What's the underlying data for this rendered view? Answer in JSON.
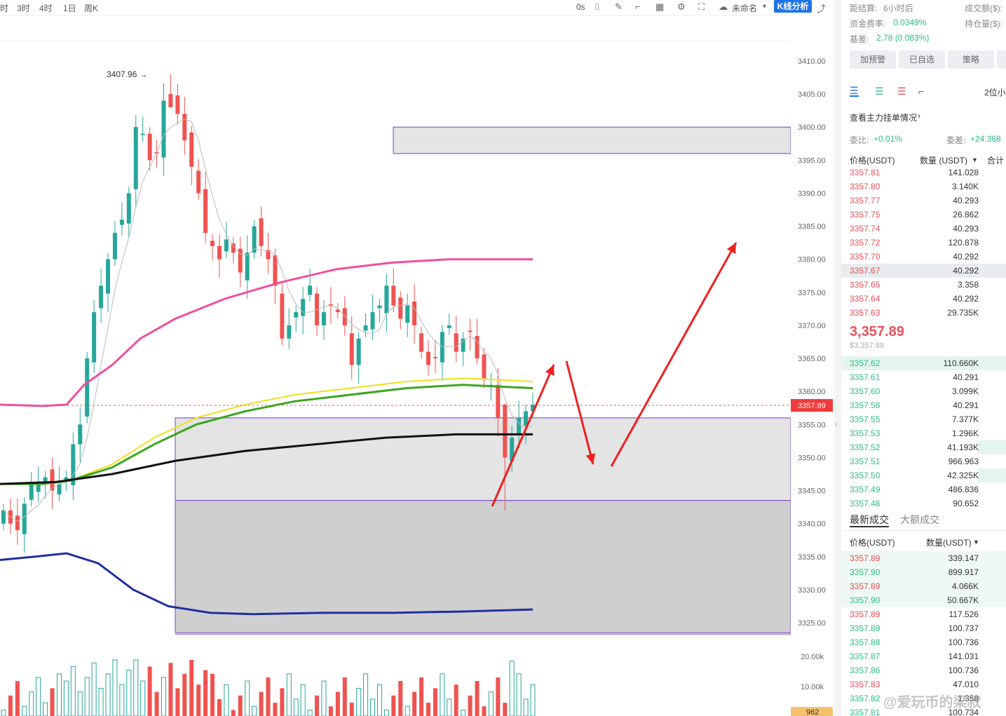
{
  "toolbar": {
    "timeframes": [
      "时",
      "3时",
      "4时",
      "1日",
      "周K"
    ],
    "countdown": "0s",
    "layout_name": "未命名",
    "kline_analysis": "K线分析"
  },
  "annotations": {
    "high_label": "3407.96 →",
    "last_price_tag": "3357.89"
  },
  "y_axis": {
    "ticks": [
      "3410.00",
      "3405.00",
      "3400.00",
      "3395.00",
      "3390.00",
      "3385.00",
      "3380.00",
      "3375.00",
      "3370.00",
      "3365.00",
      "3360.00",
      "3355.00",
      "3350.00",
      "3345.00",
      "3340.00",
      "3335.00",
      "3330.00",
      "3325.00"
    ],
    "volume_ticks": [
      "20.00k",
      "10.00k"
    ],
    "volume_tag": "962"
  },
  "chart_data": {
    "type": "candlestick",
    "ylim": [
      3322,
      3412
    ],
    "last_price": 3357.89,
    "high": 3407.96,
    "colors": {
      "up": "#26a69a",
      "down": "#ef5350",
      "ma_pink": "#f04ea0",
      "ma_yellow": "#f0e020",
      "ma_green": "#3aa61e",
      "ma_black": "#111111",
      "ma_blue": "#1f2fa0"
    },
    "zones": [
      {
        "from": 3396,
        "to": 3400,
        "color": "#e4e4e4"
      },
      {
        "from": 3343.5,
        "to": 3356,
        "color": "#e4e4e4"
      },
      {
        "from": 3323.5,
        "to": 3343.5,
        "color": "#cfcfcf"
      }
    ]
  },
  "panel": {
    "settlement_label": "距结算:",
    "settlement_value": "6小时后",
    "turnover_label": "成交额($):",
    "funding_label": "资金费率:",
    "funding_value": "0.0349%",
    "oi_label": "持仓量($):",
    "basis_label": "基差:",
    "basis_value": "2.78 (0.083%)",
    "buttons": [
      "加预警",
      "已自选",
      "策略"
    ],
    "precision": "2位小",
    "main_orders_link": "查看主力挂单情况",
    "ratio_label": "委比:",
    "ratio_value": "+0.01%",
    "diff_label": "委差:",
    "diff_value": "+24.368",
    "col_price": "价格(USDT)",
    "col_qty": "数量 (USDT)",
    "col_total": "合计",
    "asks": [
      {
        "price": "3357.81",
        "qty": "141.028"
      },
      {
        "price": "3357.80",
        "qty": "3.140K"
      },
      {
        "price": "3357.77",
        "qty": "40.293"
      },
      {
        "price": "3357.75",
        "qty": "26.862"
      },
      {
        "price": "3357.74",
        "qty": "40.293"
      },
      {
        "price": "3357.72",
        "qty": "120.878"
      },
      {
        "price": "3357.70",
        "qty": "40.292"
      },
      {
        "price": "3357.67",
        "qty": "40.292"
      },
      {
        "price": "3357.65",
        "qty": "3.358"
      },
      {
        "price": "3357.64",
        "qty": "40.292"
      },
      {
        "price": "3357.63",
        "qty": "29.735K"
      }
    ],
    "mid_price": "3,357.89",
    "mid_price_usd": "$3,357.89",
    "bids": [
      {
        "price": "3357.62",
        "qty": "110.660K"
      },
      {
        "price": "3357.61",
        "qty": "40.291"
      },
      {
        "price": "3357.60",
        "qty": "3.099K"
      },
      {
        "price": "3357.58",
        "qty": "40.291"
      },
      {
        "price": "3357.55",
        "qty": "7.377K"
      },
      {
        "price": "3357.53",
        "qty": "1.296K"
      },
      {
        "price": "3357.52",
        "qty": "41.193K"
      },
      {
        "price": "3357.51",
        "qty": "966.963"
      },
      {
        "price": "3357.50",
        "qty": "42.325K"
      },
      {
        "price": "3357.49",
        "qty": "486.836"
      },
      {
        "price": "3357.48",
        "qty": "90.652"
      }
    ],
    "trades_tab_latest": "最新成交",
    "trades_tab_large": "大额成交",
    "trades_col_price": "价格(USDT)",
    "trades_col_qty": "数量(USDT)",
    "trades": [
      {
        "price": "3357.89",
        "qty": "339.147",
        "side": "sell"
      },
      {
        "price": "3357.90",
        "qty": "899.917",
        "side": "buy"
      },
      {
        "price": "3357.89",
        "qty": "4.066K",
        "side": "sell"
      },
      {
        "price": "3357.90",
        "qty": "50.667K",
        "side": "buy"
      },
      {
        "price": "3357.89",
        "qty": "117.526",
        "side": "sell"
      },
      {
        "price": "3357.89",
        "qty": "100.737",
        "side": "buy"
      },
      {
        "price": "3357.88",
        "qty": "100.736",
        "side": "buy"
      },
      {
        "price": "3357.87",
        "qty": "141.031",
        "side": "buy"
      },
      {
        "price": "3357.86",
        "qty": "100.736",
        "side": "buy"
      },
      {
        "price": "3357.83",
        "qty": "47.010",
        "side": "sell"
      },
      {
        "price": "3357.82",
        "qty": "1.358",
        "side": "buy"
      },
      {
        "price": "3357.81",
        "qty": "100.734",
        "side": "buy"
      }
    ],
    "watermark": "@爱玩币的梁叔"
  }
}
